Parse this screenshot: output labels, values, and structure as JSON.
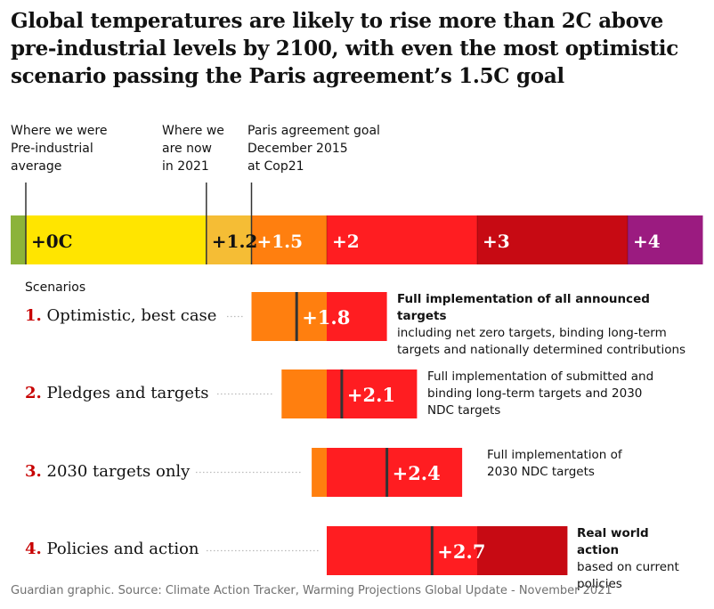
{
  "title": "Global temperatures are likely to rise more than 2C above pre-industrial levels by 2100, with even the most optimistic scenario passing the Paris agreement’s 1.5C goal",
  "markers": [
    {
      "lines": [
        "Where we were",
        "Pre-industrial",
        "average"
      ],
      "value": 0
    },
    {
      "lines": [
        "Where we",
        "are now",
        "in 2021"
      ],
      "value": 1.2
    },
    {
      "lines": [
        "Paris agreement goal",
        "December 2015",
        "at Cop21"
      ],
      "value": 1.5
    }
  ],
  "colors": {
    "green": "#8cb33a",
    "yellow": "#ffe500",
    "light_orange": "#f5bd35",
    "orange": "#ff7f0f",
    "red": "#ff1d21",
    "dark_red": "#c70a13",
    "purple": "#9b1b80",
    "marker_line": "#333333",
    "accent_number": "#c70000"
  },
  "scenarios_heading": "Scenarios",
  "chart_data": {
    "type": "bar",
    "unit": "°C above pre-industrial average",
    "scale": {
      "segments": [
        {
          "from": 0,
          "to": 1.2,
          "color": "yellow"
        },
        {
          "from": 1.2,
          "to": 1.5,
          "color": "light_orange"
        },
        {
          "from": 1.5,
          "to": 2,
          "color": "orange"
        },
        {
          "from": 2,
          "to": 3,
          "color": "red"
        },
        {
          "from": 3,
          "to": 4,
          "color": "dark_red"
        },
        {
          "from": 4,
          "to": 4.5,
          "color": "purple"
        }
      ],
      "labels": [
        {
          "text": "+0C",
          "value": 0
        },
        {
          "text": "+1.2",
          "value": 1.2
        },
        {
          "text": "+1.5",
          "value": 1.5
        },
        {
          "text": "+2",
          "value": 2
        },
        {
          "text": "+3",
          "value": 3
        },
        {
          "text": "+4",
          "value": 4
        }
      ]
    },
    "scenarios": [
      {
        "number": "1.",
        "name": "Optimistic, best case",
        "low": 1.5,
        "high": 2.4,
        "central": 1.8,
        "central_label": "+1.8",
        "desc1": "Full implementation of all announced targets",
        "desc2": "including net zero targets, binding long-term targets and nationally determined contributions"
      },
      {
        "number": "2.",
        "name": "Pledges and targets",
        "low": 1.7,
        "high": 2.6,
        "central": 2.1,
        "central_label": "+2.1",
        "desc1": "",
        "desc2": "Full implementation of submitted and binding long-term targets and 2030 NDC targets"
      },
      {
        "number": "3.",
        "name": "2030 targets only",
        "low": 1.9,
        "high": 2.9,
        "central": 2.4,
        "central_label": "+2.4",
        "desc1": "",
        "desc2": "Full implementation of 2030 NDC targets"
      },
      {
        "number": "4.",
        "name": "Policies and action",
        "low": 2.0,
        "high": 3.6,
        "central": 2.7,
        "central_label": "+2.7",
        "desc1": "Real world action",
        "desc2": "based on current policies"
      }
    ]
  },
  "source": "Guardian graphic. Source: Climate Action Tracker, Warming Projections Global Update - November 2021"
}
